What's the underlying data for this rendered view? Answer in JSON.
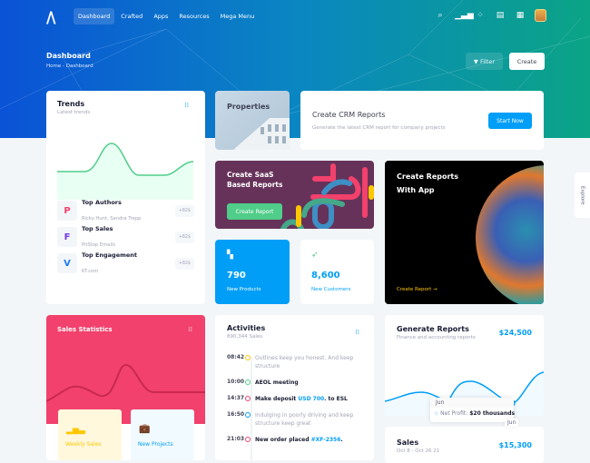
{
  "nav": {
    "items": [
      "Dashboard",
      "Crafted",
      "Apps",
      "Resources",
      "Mega Menu"
    ],
    "active": "Dashboard"
  },
  "toolbar": {
    "title": "Dashboard",
    "breadcrumb": [
      "Home",
      "Dashboard"
    ],
    "filter_label": "Filter",
    "create_label": "Create"
  },
  "explore_label": "Explore",
  "trends": {
    "title": "Trends",
    "subtitle": "Latest trends",
    "items": [
      {
        "name": "Top Authors",
        "sub": "Ricky Hunt, Sandra Trepp",
        "badge": "+82$",
        "icon": "pinterest-icon",
        "color": "#f1416c"
      },
      {
        "name": "Top Sales",
        "sub": "PitStop Emails",
        "badge": "+82$",
        "icon": "figma-icon",
        "color": "#7239ea"
      },
      {
        "name": "Top Engagement",
        "sub": "KT.com",
        "badge": "+82$",
        "icon": "vimeo-icon",
        "color": "#1da1f2"
      }
    ]
  },
  "properties": {
    "title": "Properties"
  },
  "crm": {
    "title": "Create CRM Reports",
    "subtitle": "Generate the latest CRM report for company projects",
    "button": "Start Now"
  },
  "saas": {
    "title_line1": "Create SaaS",
    "title_line2": "Based Reports",
    "button": "Create Report"
  },
  "app": {
    "title_line1": "Create Reports",
    "title_line2": "With App",
    "link": "Create Report"
  },
  "products": {
    "value": "790",
    "label": "New Products"
  },
  "customers": {
    "value": "8,600",
    "label": "New Customers"
  },
  "sales_stats": {
    "title": "Sales Statistics",
    "tiles": [
      "Weekly Sales",
      "New Projects"
    ]
  },
  "activities": {
    "title": "Activities",
    "subtitle": "890,344 Sales",
    "items": [
      {
        "time": "08:42",
        "color": "#ffc700",
        "pre": "Outlines keep you honest. And keep structure",
        "link": "",
        "post": "",
        "style": "muted"
      },
      {
        "time": "10:00",
        "color": "#50cd89",
        "pre": "AEOL meeting",
        "link": "",
        "post": "",
        "style": "bold"
      },
      {
        "time": "14:37",
        "color": "#f1416c",
        "pre": "Make deposit ",
        "link": "USD 700",
        "post": ". to ESL",
        "style": "bold"
      },
      {
        "time": "16:50",
        "color": "#009ef7",
        "pre": "Indulging in poorly driving and keep structure keep great",
        "link": "",
        "post": "",
        "style": "muted"
      },
      {
        "time": "21:03",
        "color": "#f1416c",
        "pre": "New order placed ",
        "link": "#XF-2356",
        "post": ".",
        "style": "bold"
      }
    ]
  },
  "generate": {
    "title": "Generate Reports",
    "subtitle": "Finance and accounting reports",
    "amount": "$24,500",
    "tooltip": {
      "label": "Jun",
      "series": "Net Profit:",
      "value": "$20 thousands"
    },
    "axis_label": "Jun"
  },
  "sales": {
    "title": "Sales",
    "subtitle": "Oct 8 - Oct 26 21",
    "amount": "$15,300"
  }
}
